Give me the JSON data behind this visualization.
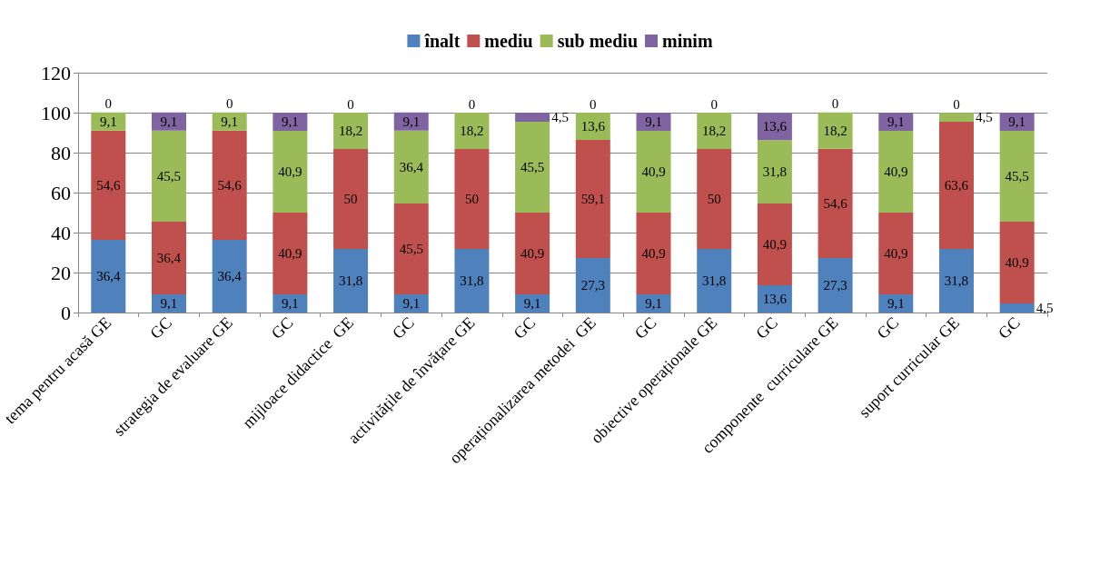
{
  "chart_data": {
    "type": "bar",
    "stacked": true,
    "legend": "top",
    "grid": "y",
    "categories": [
      "tema pentru acasă GE",
      "GC",
      "strategia de evaluare GE",
      "GC",
      "mijloace didactice  GE",
      "GC",
      "activitățile de învățare GE",
      "GC",
      "operaționalizarea metodei  GE",
      "GC",
      "obiective operaționale GE",
      "GC",
      "componente  curriculare GE",
      "GC",
      "suport curricular GE",
      "GC"
    ],
    "ylim": [
      0,
      120
    ],
    "yticks": [
      0,
      20,
      40,
      60,
      80,
      100,
      120
    ],
    "series": [
      {
        "name": "înalt",
        "color": "#4f81bd",
        "values": [
          36.4,
          9.1,
          36.4,
          9.1,
          31.8,
          9.1,
          31.8,
          9.1,
          27.3,
          9.1,
          31.8,
          13.6,
          27.3,
          9.1,
          31.8,
          4.5
        ],
        "value_labels": [
          "36,4",
          "9,1",
          "36,4",
          "9,1",
          "31,8",
          "9,1",
          "31,8",
          "9,1",
          "27,3",
          "9,1",
          "31,8",
          "13,6",
          "27,3",
          "9,1",
          "31,8",
          "4,5"
        ]
      },
      {
        "name": "mediu",
        "color": "#c0504d",
        "values": [
          54.6,
          36.4,
          54.6,
          40.9,
          50,
          45.5,
          50,
          40.9,
          59.1,
          40.9,
          50,
          40.9,
          54.6,
          40.9,
          63.6,
          40.9
        ],
        "value_labels": [
          "54,6",
          "36,4",
          "54,6",
          "40,9",
          "50",
          "45,5",
          "50",
          "40,9",
          "59,1",
          "40,9",
          "50",
          "40,9",
          "54,6",
          "40,9",
          "63,6",
          "40,9"
        ]
      },
      {
        "name": "sub mediu",
        "color": "#9bbb59",
        "values": [
          9.1,
          45.5,
          9.1,
          40.9,
          18.2,
          36.4,
          18.2,
          45.5,
          13.6,
          40.9,
          18.2,
          31.8,
          18.2,
          40.9,
          4.5,
          45.5
        ],
        "value_labels": [
          "9,1",
          "45,5",
          "9,1",
          "40,9",
          "18,2",
          "36,4",
          "18,2",
          "45,5",
          "13,6",
          "40,9",
          "18,2",
          "31,8",
          "18,2",
          "40,9",
          "4,5",
          "45,5"
        ]
      },
      {
        "name": "minim",
        "color": "#8064a2",
        "values": [
          0,
          9.1,
          0,
          9.1,
          0,
          9.1,
          0,
          4.5,
          0,
          9.1,
          0,
          13.6,
          0,
          9.1,
          0,
          9.1
        ],
        "value_labels": [
          "0",
          "9,1",
          "0",
          "9,1",
          "0",
          "9,1",
          "0",
          "4,5",
          "0",
          "9,1",
          "0",
          "13,6",
          "0",
          "9,1",
          "0",
          "9,1"
        ]
      }
    ]
  }
}
